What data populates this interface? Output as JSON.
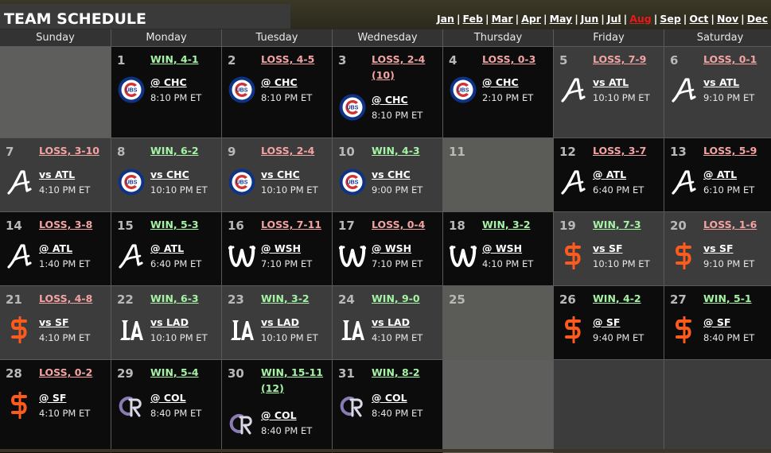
{
  "title": "TEAM SCHEDULE",
  "months": [
    {
      "label": "Jan",
      "current": false
    },
    {
      "label": "Feb",
      "current": false
    },
    {
      "label": "Mar",
      "current": false
    },
    {
      "label": "Apr",
      "current": false
    },
    {
      "label": "May",
      "current": false
    },
    {
      "label": "Jun",
      "current": false
    },
    {
      "label": "Jul",
      "current": false
    },
    {
      "label": "Aug",
      "current": true
    },
    {
      "label": "Sep",
      "current": false
    },
    {
      "label": "Oct",
      "current": false
    },
    {
      "label": "Nov",
      "current": false
    },
    {
      "label": "Dec",
      "current": false
    }
  ],
  "days": [
    "Sunday",
    "Monday",
    "Tuesday",
    "Wednesday",
    "Thursday",
    "Friday",
    "Saturday"
  ],
  "colors": {
    "win": "#a6f3a6",
    "loss": "#f4a3a3",
    "cubs_blue": "#0e3386",
    "cubs_red": "#cc3433",
    "giants_orange": "#fd5a1e",
    "rockies_purple": "#8a7bb5",
    "current_month": "#e31b1b"
  },
  "weeks": [
    [
      {
        "empty": true,
        "style": "empty-light"
      },
      {
        "day": "1",
        "result": "WIN, 4-1",
        "outcome": "win",
        "opponent": "@ CHC",
        "time": "8:10 PM ET",
        "logo": "cubs-logo",
        "style": "game-dark"
      },
      {
        "day": "2",
        "result": "LOSS, 4-5",
        "outcome": "loss",
        "opponent": "@ CHC",
        "time": "8:10 PM ET",
        "logo": "cubs-logo",
        "style": "game-dark"
      },
      {
        "day": "3",
        "result": "LOSS, 2-4 (10)",
        "outcome": "loss",
        "opponent": "@ CHC",
        "time": "8:10 PM ET",
        "logo": "cubs-logo",
        "style": "game-dark"
      },
      {
        "day": "4",
        "result": "LOSS, 0-3",
        "outcome": "loss",
        "opponent": "@ CHC",
        "time": "2:10 PM ET",
        "logo": "cubs-logo",
        "style": "game-dark"
      },
      {
        "day": "5",
        "result": "LOSS, 7-9",
        "outcome": "loss",
        "opponent": "vs ATL",
        "time": "10:10 PM ET",
        "logo": "braves-logo",
        "style": "game-grey"
      },
      {
        "day": "6",
        "result": "LOSS, 0-1",
        "outcome": "loss",
        "opponent": "vs ATL",
        "time": "9:10 PM ET",
        "logo": "braves-logo",
        "style": "game-grey"
      }
    ],
    [
      {
        "day": "7",
        "result": "LOSS, 3-10",
        "outcome": "loss",
        "opponent": "vs ATL",
        "time": "4:10 PM ET",
        "logo": "braves-logo",
        "style": "game-grey"
      },
      {
        "day": "8",
        "result": "WIN, 6-2",
        "outcome": "win",
        "opponent": "vs CHC",
        "time": "10:10 PM ET",
        "logo": "cubs-logo",
        "style": "game-grey"
      },
      {
        "day": "9",
        "result": "LOSS, 2-4",
        "outcome": "loss",
        "opponent": "vs CHC",
        "time": "10:10 PM ET",
        "logo": "cubs-logo",
        "style": "game-grey"
      },
      {
        "day": "10",
        "result": "WIN, 4-3",
        "outcome": "win",
        "opponent": "vs CHC",
        "time": "9:00 PM ET",
        "logo": "cubs-logo",
        "style": "game-grey"
      },
      {
        "day": "11",
        "off": true,
        "style": "off"
      },
      {
        "day": "12",
        "result": "LOSS, 3-7",
        "outcome": "loss",
        "opponent": "@ ATL",
        "time": "6:40 PM ET",
        "logo": "braves-logo",
        "style": "game-dark"
      },
      {
        "day": "13",
        "result": "LOSS, 5-9",
        "outcome": "loss",
        "opponent": "@ ATL",
        "time": "6:10 PM ET",
        "logo": "braves-logo",
        "style": "game-dark"
      }
    ],
    [
      {
        "day": "14",
        "result": "LOSS, 3-8",
        "outcome": "loss",
        "opponent": "@ ATL",
        "time": "1:40 PM ET",
        "logo": "braves-logo",
        "style": "game-dark"
      },
      {
        "day": "15",
        "result": "WIN, 5-3",
        "outcome": "win",
        "opponent": "@ ATL",
        "time": "6:40 PM ET",
        "logo": "braves-logo",
        "style": "game-dark"
      },
      {
        "day": "16",
        "result": "LOSS, 7-11",
        "outcome": "loss",
        "opponent": "@ WSH",
        "time": "7:10 PM ET",
        "logo": "nationals-logo",
        "style": "game-dark"
      },
      {
        "day": "17",
        "result": "LOSS, 0-4",
        "outcome": "loss",
        "opponent": "@ WSH",
        "time": "7:10 PM ET",
        "logo": "nationals-logo",
        "style": "game-dark"
      },
      {
        "day": "18",
        "result": "WIN, 3-2",
        "outcome": "win",
        "opponent": "@ WSH",
        "time": "4:10 PM ET",
        "logo": "nationals-logo",
        "style": "game-dark"
      },
      {
        "day": "19",
        "result": "WIN, 7-3",
        "outcome": "win",
        "opponent": "vs SF",
        "time": "10:10 PM ET",
        "logo": "giants-logo",
        "style": "game-grey"
      },
      {
        "day": "20",
        "result": "LOSS, 1-6",
        "outcome": "loss",
        "opponent": "vs SF",
        "time": "9:10 PM ET",
        "logo": "giants-logo",
        "style": "game-grey"
      }
    ],
    [
      {
        "day": "21",
        "result": "LOSS, 4-8",
        "outcome": "loss",
        "opponent": "vs SF",
        "time": "4:10 PM ET",
        "logo": "giants-logo",
        "style": "game-grey"
      },
      {
        "day": "22",
        "result": "WIN, 6-3",
        "outcome": "win",
        "opponent": "vs LAD",
        "time": "10:10 PM ET",
        "logo": "dodgers-logo",
        "style": "game-grey"
      },
      {
        "day": "23",
        "result": "WIN, 3-2",
        "outcome": "win",
        "opponent": "vs LAD",
        "time": "10:10 PM ET",
        "logo": "dodgers-logo",
        "style": "game-grey"
      },
      {
        "day": "24",
        "result": "WIN, 9-0",
        "outcome": "win",
        "opponent": "vs LAD",
        "time": "4:10 PM ET",
        "logo": "dodgers-logo",
        "style": "game-grey"
      },
      {
        "day": "25",
        "off": true,
        "style": "off"
      },
      {
        "day": "26",
        "result": "WIN, 4-2",
        "outcome": "win",
        "opponent": "@ SF",
        "time": "9:40 PM ET",
        "logo": "giants-logo",
        "style": "game-dark"
      },
      {
        "day": "27",
        "result": "WIN, 5-1",
        "outcome": "win",
        "opponent": "@ SF",
        "time": "8:40 PM ET",
        "logo": "giants-logo",
        "style": "game-dark"
      }
    ],
    [
      {
        "day": "28",
        "result": "LOSS, 0-2",
        "outcome": "loss",
        "opponent": "@ SF",
        "time": "4:10 PM ET",
        "logo": "giants-logo",
        "style": "game-dark"
      },
      {
        "day": "29",
        "result": "WIN, 5-4",
        "outcome": "win",
        "opponent": "@ COL",
        "time": "8:40 PM ET",
        "logo": "rockies-logo",
        "style": "game-dark"
      },
      {
        "day": "30",
        "result": "WIN, 15-11 (12)",
        "outcome": "win",
        "opponent": "@ COL",
        "time": "8:40 PM ET",
        "logo": "rockies-logo",
        "style": "game-dark"
      },
      {
        "day": "31",
        "result": "WIN, 8-2",
        "outcome": "win",
        "opponent": "@ COL",
        "time": "8:40 PM ET",
        "logo": "rockies-logo",
        "style": "game-dark"
      },
      {
        "empty": true,
        "style": "empty-light"
      },
      {
        "empty": true,
        "style": "empty-grey"
      },
      {
        "empty": true,
        "style": "empty-grey"
      }
    ]
  ]
}
